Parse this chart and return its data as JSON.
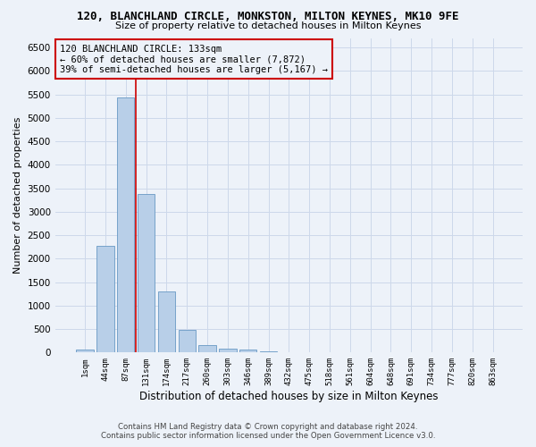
{
  "title1": "120, BLANCHLAND CIRCLE, MONKSTON, MILTON KEYNES, MK10 9FE",
  "title2": "Size of property relative to detached houses in Milton Keynes",
  "xlabel": "Distribution of detached houses by size in Milton Keynes",
  "ylabel": "Number of detached properties",
  "footnote1": "Contains HM Land Registry data © Crown copyright and database right 2024.",
  "footnote2": "Contains public sector information licensed under the Open Government Licence v3.0.",
  "bar_labels": [
    "1sqm",
    "44sqm",
    "87sqm",
    "131sqm",
    "174sqm",
    "217sqm",
    "260sqm",
    "303sqm",
    "346sqm",
    "389sqm",
    "432sqm",
    "475sqm",
    "518sqm",
    "561sqm",
    "604sqm",
    "648sqm",
    "691sqm",
    "734sqm",
    "777sqm",
    "820sqm",
    "863sqm"
  ],
  "bar_values": [
    70,
    2280,
    5430,
    3380,
    1300,
    480,
    165,
    85,
    55,
    30,
    15,
    10,
    5,
    3,
    2,
    1,
    1,
    0,
    0,
    0,
    0
  ],
  "bar_color": "#b8cfe8",
  "bar_edge_color": "#6899c4",
  "grid_color": "#cdd8ea",
  "background_color": "#edf2f9",
  "property_label": "120 BLANCHLAND CIRCLE: 133sqm",
  "pct_smaller": "60% of detached houses are smaller (7,872)",
  "pct_larger": "39% of semi-detached houses are larger (5,167)",
  "vline_color": "#cc0000",
  "annotation_box_color": "#cc0000",
  "vline_x": 2.5,
  "ylim": [
    0,
    6700
  ],
  "yticks": [
    0,
    500,
    1000,
    1500,
    2000,
    2500,
    3000,
    3500,
    4000,
    4500,
    5000,
    5500,
    6000,
    6500
  ]
}
